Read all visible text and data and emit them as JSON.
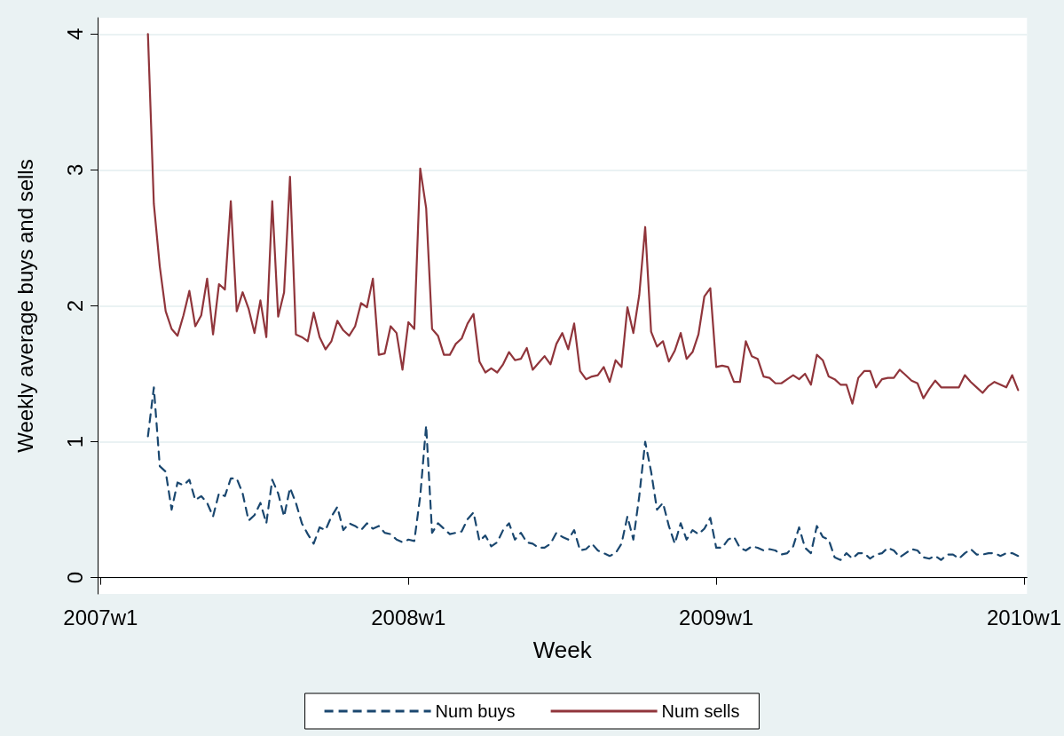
{
  "chart_data": {
    "type": "line",
    "xlabel": "Week",
    "ylabel": "Weekly average buys and sells",
    "categories": [
      "2007w1",
      null,
      null,
      null,
      null,
      null,
      null,
      null,
      null,
      null,
      null,
      null,
      null,
      null,
      null,
      null,
      null,
      null,
      null,
      null,
      null,
      null,
      null,
      null,
      null,
      null,
      null,
      null,
      null,
      null,
      null,
      null,
      null,
      null,
      null,
      null,
      null,
      null,
      null,
      null,
      null,
      null,
      null,
      null,
      null,
      null,
      null,
      null,
      null,
      null,
      null,
      null,
      "2008w1",
      null,
      null,
      null,
      null,
      null,
      null,
      null,
      null,
      null,
      null,
      null,
      null,
      null,
      null,
      null,
      null,
      null,
      null,
      null,
      null,
      null,
      null,
      null,
      null,
      null,
      null,
      null,
      null,
      null,
      null,
      null,
      null,
      null,
      null,
      null,
      null,
      null,
      null,
      null,
      null,
      null,
      null,
      null,
      null,
      null,
      null,
      null,
      null,
      null,
      null,
      null,
      "2009w1",
      null,
      null,
      null,
      null,
      null,
      null,
      null,
      null,
      null,
      null,
      null,
      null,
      null,
      null,
      null,
      null,
      null,
      null,
      null,
      null,
      null,
      null,
      null,
      null,
      null,
      null,
      null,
      null,
      null,
      null,
      null,
      null,
      null,
      null,
      null,
      null,
      null,
      null,
      null,
      null,
      null,
      null,
      null,
      null,
      null,
      null,
      null,
      null,
      null,
      null,
      null,
      "2010w1"
    ],
    "series": [
      {
        "name": "Num buys",
        "color": "#1a476f",
        "line_style": "dashed",
        "values": [
          null,
          null,
          null,
          null,
          null,
          null,
          null,
          null,
          1.04,
          1.4,
          0.82,
          0.78,
          0.5,
          0.7,
          0.68,
          0.72,
          0.57,
          0.6,
          0.55,
          0.45,
          0.62,
          0.6,
          0.73,
          0.73,
          0.62,
          0.42,
          0.46,
          0.55,
          0.4,
          0.72,
          0.62,
          0.45,
          0.66,
          0.55,
          0.4,
          0.32,
          0.25,
          0.37,
          0.35,
          0.45,
          0.52,
          0.35,
          0.4,
          0.38,
          0.35,
          0.4,
          0.36,
          0.38,
          0.33,
          0.32,
          0.28,
          0.26,
          0.28,
          0.27,
          0.6,
          1.12,
          0.33,
          0.4,
          0.36,
          0.32,
          0.33,
          0.34,
          0.43,
          0.48,
          0.27,
          0.31,
          0.23,
          0.26,
          0.35,
          0.4,
          0.28,
          0.33,
          0.26,
          0.25,
          0.22,
          0.22,
          0.25,
          0.33,
          0.3,
          0.28,
          0.35,
          0.2,
          0.21,
          0.25,
          0.2,
          0.18,
          0.16,
          0.18,
          0.25,
          0.45,
          0.28,
          0.6,
          1.0,
          0.78,
          0.5,
          0.55,
          0.38,
          0.25,
          0.4,
          0.28,
          0.35,
          0.32,
          0.36,
          0.44,
          0.22,
          0.22,
          0.28,
          0.3,
          0.22,
          0.2,
          0.23,
          0.22,
          0.2,
          0.21,
          0.2,
          0.17,
          0.18,
          0.23,
          0.37,
          0.22,
          0.18,
          0.38,
          0.3,
          0.28,
          0.15,
          0.13,
          0.18,
          0.14,
          0.18,
          0.18,
          0.14,
          0.17,
          0.18,
          0.22,
          0.2,
          0.15,
          0.18,
          0.21,
          0.2,
          0.15,
          0.14,
          0.16,
          0.13,
          0.17,
          0.17,
          0.14,
          0.18,
          0.21,
          0.17,
          0.17,
          0.18,
          0.18,
          0.16,
          0.18,
          0.18,
          0.16,
          null
        ]
      },
      {
        "name": "Num sells",
        "color": "#90353b",
        "line_style": "solid",
        "values": [
          null,
          null,
          null,
          null,
          null,
          null,
          null,
          null,
          4.0,
          2.75,
          2.29,
          1.96,
          1.83,
          1.78,
          1.93,
          2.11,
          1.85,
          1.93,
          2.2,
          1.79,
          2.16,
          2.12,
          2.77,
          1.96,
          2.1,
          1.98,
          1.8,
          2.04,
          1.77,
          2.77,
          1.92,
          2.1,
          2.95,
          1.79,
          1.77,
          1.74,
          1.95,
          1.77,
          1.68,
          1.74,
          1.89,
          1.82,
          1.78,
          1.85,
          2.02,
          1.99,
          2.2,
          1.64,
          1.65,
          1.85,
          1.8,
          1.53,
          1.88,
          1.83,
          3.01,
          2.72,
          1.83,
          1.78,
          1.64,
          1.64,
          1.72,
          1.76,
          1.87,
          1.94,
          1.59,
          1.51,
          1.54,
          1.51,
          1.57,
          1.66,
          1.6,
          1.61,
          1.69,
          1.53,
          1.58,
          1.63,
          1.57,
          1.72,
          1.8,
          1.68,
          1.87,
          1.52,
          1.46,
          1.48,
          1.49,
          1.55,
          1.44,
          1.6,
          1.55,
          1.99,
          1.8,
          2.08,
          2.58,
          1.81,
          1.7,
          1.74,
          1.59,
          1.67,
          1.8,
          1.61,
          1.66,
          1.79,
          2.07,
          2.13,
          1.55,
          1.56,
          1.55,
          1.44,
          1.44,
          1.74,
          1.63,
          1.61,
          1.48,
          1.47,
          1.43,
          1.43,
          1.46,
          1.49,
          1.46,
          1.5,
          1.42,
          1.64,
          1.6,
          1.48,
          1.46,
          1.42,
          1.42,
          1.28,
          1.47,
          1.52,
          1.52,
          1.4,
          1.46,
          1.47,
          1.47,
          1.53,
          1.49,
          1.45,
          1.43,
          1.32,
          1.39,
          1.45,
          1.4,
          1.4,
          1.4,
          1.4,
          1.49,
          1.44,
          1.4,
          1.36,
          1.41,
          1.44,
          1.42,
          1.4,
          1.49,
          1.38,
          null
        ]
      }
    ],
    "ylim": [
      -0.12,
      4.12
    ],
    "yticks": [
      0,
      1,
      2,
      3,
      4
    ],
    "grid": "y",
    "legend": "bottom",
    "marker": "none"
  }
}
